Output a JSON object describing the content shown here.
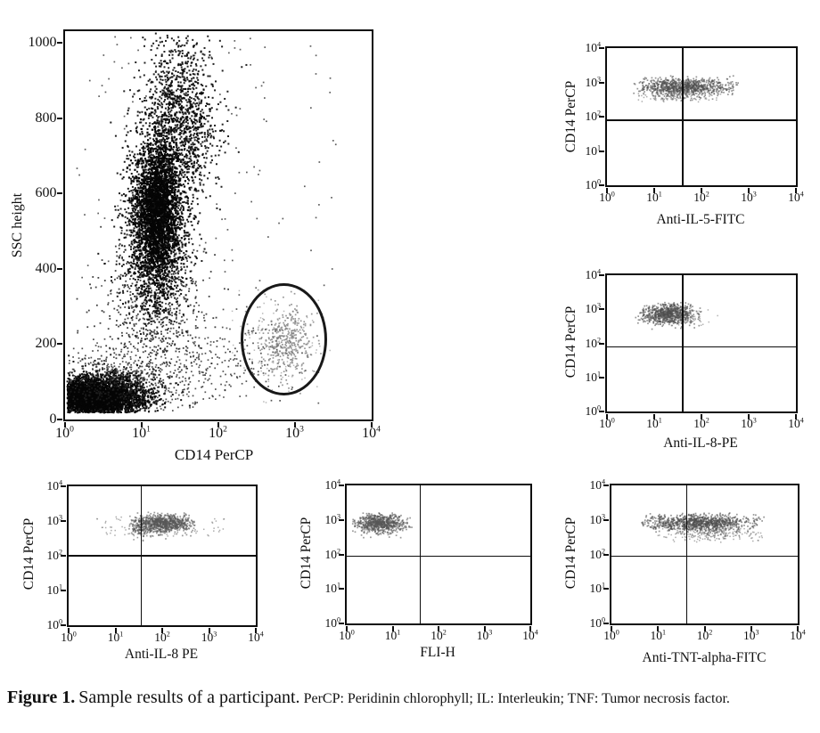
{
  "caption": {
    "label": "Figure 1.",
    "text": "Sample results of a participant.",
    "note": "PerCP: Peridinin chlorophyll; IL: Interleukin; TNF: Tumor necrosis factor."
  },
  "colors": {
    "ink": "#0d0d0d",
    "gate_population_gray": "#7d7d7d",
    "background": "#ffffff"
  },
  "chart_data": [
    {
      "id": "ssc-vs-cd14",
      "type": "scatter",
      "xlabel": "CD14 PerCP",
      "ylabel": "SSC height",
      "xscale": "log",
      "xrange": [
        0,
        4
      ],
      "yscale": "linear",
      "yrange": [
        0,
        1033
      ],
      "xticks": [
        {
          "v": 0,
          "label": "10^0"
        },
        {
          "v": 1,
          "label": "10^1"
        },
        {
          "v": 2,
          "label": "10^2"
        },
        {
          "v": 3,
          "label": "10^3"
        },
        {
          "v": 4,
          "label": "10^4"
        }
      ],
      "yticks": [
        {
          "v": 0,
          "label": "0"
        },
        {
          "v": 200,
          "label": "200"
        },
        {
          "v": 400,
          "label": "400"
        },
        {
          "v": 600,
          "label": "600"
        },
        {
          "v": 800,
          "label": "800"
        },
        {
          "v": 1000,
          "label": "1000"
        }
      ],
      "gate_ellipse": {
        "cx": 2.86,
        "cy": 212,
        "rx": 0.565,
        "ry": 150
      },
      "clusters": [
        {
          "n": 2600,
          "cx": 0.42,
          "cy": 60,
          "sx": 0.34,
          "sy": 30,
          "clipx": [
            0.03,
            2.1
          ],
          "clipy": [
            18,
            170
          ],
          "color": "#070707",
          "size": 2,
          "alpha": 0.95
        },
        {
          "n": 1200,
          "cx": 0.35,
          "cy": 55,
          "sx": 0.22,
          "sy": 20,
          "clipx": [
            0.03,
            1.6
          ],
          "clipy": [
            18,
            140
          ],
          "color": "#050505",
          "size": 2.2,
          "alpha": 1
        },
        {
          "n": 600,
          "cx": 0.75,
          "cy": 100,
          "sx": 0.5,
          "sy": 50,
          "clipx": [
            0.03,
            2.4
          ],
          "clipy": [
            20,
            280
          ],
          "color": "#222222",
          "size": 1.7,
          "alpha": 0.8
        },
        {
          "n": 2400,
          "cx": 1.18,
          "cy": 520,
          "sx": 0.2,
          "sy": 110,
          "clipx": [
            0.35,
            2.5
          ],
          "clipy": [
            210,
            900
          ],
          "color": "#0a0a0a",
          "size": 2,
          "alpha": 0.92
        },
        {
          "n": 1500,
          "cx": 1.22,
          "cy": 565,
          "sx": 0.13,
          "sy": 95,
          "clipx": [
            0.5,
            2.2
          ],
          "clipy": [
            260,
            860
          ],
          "color": "#050505",
          "size": 2.2,
          "alpha": 1
        },
        {
          "n": 1300,
          "cx": 1.5,
          "cy": 800,
          "sx": 0.24,
          "sy": 115,
          "clipx": [
            0.5,
            2.7
          ],
          "clipy": [
            430,
            1028
          ],
          "color": "#0a0a0a",
          "size": 2,
          "alpha": 0.9
        },
        {
          "n": 700,
          "cx": 1.15,
          "cy": 300,
          "sx": 0.35,
          "sy": 115,
          "clipx": [
            0.15,
            2.7
          ],
          "clipy": [
            70,
            540
          ],
          "color": "#111111",
          "size": 1.8,
          "alpha": 0.8
        },
        {
          "n": 200,
          "cx": 1.95,
          "cy": 165,
          "sx": 0.5,
          "sy": 60,
          "clipx": [
            0.8,
            3.2
          ],
          "clipy": [
            40,
            330
          ],
          "color": "#1a1a1a",
          "size": 1.7,
          "alpha": 0.75
        },
        {
          "n": 170,
          "dist": "uniform",
          "x": [
            0.15,
            3.55
          ],
          "y": [
            40,
            1020
          ],
          "clipx": [
            0,
            4
          ],
          "clipy": [
            0,
            1033
          ],
          "color": "#1a1a1a",
          "size": 1.7,
          "alpha": 0.7
        },
        {
          "n": 420,
          "cx": 2.87,
          "cy": 205,
          "sx": 0.18,
          "sy": 50,
          "clipx": [
            2.33,
            3.4
          ],
          "clipy": [
            62,
            355
          ],
          "color": "#7d7d7d",
          "size": 1.7,
          "alpha": 0.8
        },
        {
          "n": 90,
          "cx": 2.8,
          "cy": 200,
          "sx": 0.3,
          "sy": 78,
          "clipx": [
            2.1,
            3.5
          ],
          "clipy": [
            40,
            380
          ],
          "color": "#9b9b9b",
          "size": 1.5,
          "alpha": 0.7
        }
      ]
    },
    {
      "id": "cd14-vs-anti-il5-fitc",
      "type": "scatter",
      "xlabel": "Anti-IL-5-FITC",
      "ylabel": "CD14 PerCP",
      "xscale": "log",
      "xrange": [
        0,
        4
      ],
      "yscale": "log",
      "yrange": [
        0,
        4
      ],
      "xticks": [
        {
          "v": 0,
          "label": "10^0"
        },
        {
          "v": 1,
          "label": "10^1"
        },
        {
          "v": 2,
          "label": "10^2"
        },
        {
          "v": 3,
          "label": "10^3"
        },
        {
          "v": 4,
          "label": "10^4"
        }
      ],
      "yticks": [
        {
          "v": 0,
          "label": "10^0"
        },
        {
          "v": 1,
          "label": "10^1"
        },
        {
          "v": 2,
          "label": "10^2"
        },
        {
          "v": 3,
          "label": "10^3"
        },
        {
          "v": 4,
          "label": "10^4"
        }
      ],
      "quadrant": {
        "vx": 1.6,
        "hy": 1.9
      },
      "clusters": [
        {
          "n": 900,
          "cx": 1.62,
          "cy": 2.87,
          "sx": 0.48,
          "sy": 0.13,
          "clipx": [
            0.55,
            2.78
          ],
          "clipy": [
            2.45,
            3.22
          ],
          "color": "#4f4f4f",
          "size": 1.7,
          "alpha": 0.6
        },
        {
          "n": 140,
          "cx": 1.5,
          "cy": 2.6,
          "sx": 0.4,
          "sy": 0.1,
          "clipx": [
            0.6,
            2.6
          ],
          "clipy": [
            2.4,
            2.75
          ],
          "color": "#6a6a6a",
          "size": 1.5,
          "alpha": 0.55
        }
      ]
    },
    {
      "id": "cd14-vs-anti-il8-pe",
      "type": "scatter",
      "xlabel": "Anti-IL-8-PE",
      "ylabel": "CD14 PerCP",
      "xscale": "log",
      "xrange": [
        0,
        4
      ],
      "yscale": "log",
      "yrange": [
        0,
        4
      ],
      "xticks": [
        {
          "v": 0,
          "label": "10^0"
        },
        {
          "v": 1,
          "label": "10^1"
        },
        {
          "v": 2,
          "label": "10^2"
        },
        {
          "v": 3,
          "label": "10^3"
        },
        {
          "v": 4,
          "label": "10^4"
        }
      ],
      "yticks": [
        {
          "v": 0,
          "label": "10^0"
        },
        {
          "v": 1,
          "label": "10^1"
        },
        {
          "v": 2,
          "label": "10^2"
        },
        {
          "v": 3,
          "label": "10^3"
        },
        {
          "v": 4,
          "label": "10^4"
        }
      ],
      "quadrant": {
        "vx": 1.6,
        "hy": 1.9
      },
      "clusters": [
        {
          "n": 800,
          "cx": 1.28,
          "cy": 2.86,
          "sx": 0.28,
          "sy": 0.15,
          "clipx": [
            0.6,
            2.2
          ],
          "clipy": [
            2.38,
            3.2
          ],
          "color": "#4f4f4f",
          "size": 1.7,
          "alpha": 0.6
        },
        {
          "n": 60,
          "cx": 1.7,
          "cy": 2.8,
          "sx": 0.3,
          "sy": 0.15,
          "clipx": [
            1.2,
            2.35
          ],
          "clipy": [
            2.5,
            3.1
          ],
          "color": "#6a6a6a",
          "size": 1.5,
          "alpha": 0.5
        }
      ]
    },
    {
      "id": "cd14-vs-anti-il8-pe-2",
      "type": "scatter",
      "xlabel": "Anti-IL-8 PE",
      "ylabel": "CD14 PerCP",
      "xscale": "log",
      "xrange": [
        0,
        4
      ],
      "yscale": "log",
      "yrange": [
        0,
        4
      ],
      "xticks": [
        {
          "v": 0,
          "label": "10^0"
        },
        {
          "v": 1,
          "label": "10^1"
        },
        {
          "v": 2,
          "label": "10^2"
        },
        {
          "v": 3,
          "label": "10^3"
        },
        {
          "v": 4,
          "label": "10^4"
        }
      ],
      "yticks": [
        {
          "v": 0,
          "label": "10^0"
        },
        {
          "v": 1,
          "label": "10^1"
        },
        {
          "v": 2,
          "label": "10^2"
        },
        {
          "v": 3,
          "label": "10^3"
        },
        {
          "v": 4,
          "label": "10^4"
        }
      ],
      "quadrant": {
        "vx": 1.55,
        "hy": 2.0
      },
      "clusters": [
        {
          "n": 850,
          "cx": 2.05,
          "cy": 2.93,
          "sx": 0.3,
          "sy": 0.13,
          "clipx": [
            1.25,
            2.7
          ],
          "clipy": [
            2.42,
            3.25
          ],
          "color": "#565656",
          "size": 1.7,
          "alpha": 0.6
        },
        {
          "n": 160,
          "cx": 1.56,
          "cy": 2.82,
          "sx": 0.13,
          "sy": 0.17,
          "clipx": [
            1.3,
            1.85
          ],
          "clipy": [
            2.4,
            3.15
          ],
          "color": "#565656",
          "size": 1.6,
          "alpha": 0.6
        },
        {
          "n": 90,
          "dist": "uniform",
          "x": [
            0.55,
            3.35
          ],
          "y": [
            2.55,
            3.12
          ],
          "clipx": [
            0,
            4
          ],
          "clipy": [
            0,
            4
          ],
          "color": "#6a6a6a",
          "size": 1.5,
          "alpha": 0.55
        }
      ]
    },
    {
      "id": "cd14-vs-fli-h",
      "type": "scatter",
      "xlabel": "FLI-H",
      "ylabel": "CD14 PerCP",
      "xscale": "log",
      "xrange": [
        0,
        4
      ],
      "yscale": "log",
      "yrange": [
        0,
        4
      ],
      "xticks": [
        {
          "v": 0,
          "label": "10^0"
        },
        {
          "v": 1,
          "label": "10^1"
        },
        {
          "v": 2,
          "label": "10^2"
        },
        {
          "v": 3,
          "label": "10^3"
        },
        {
          "v": 4,
          "label": "10^4"
        }
      ],
      "yticks": [
        {
          "v": 0,
          "label": "10^0"
        },
        {
          "v": 1,
          "label": "10^1"
        },
        {
          "v": 2,
          "label": "10^2"
        },
        {
          "v": 3,
          "label": "10^3"
        },
        {
          "v": 4,
          "label": "10^4"
        }
      ],
      "quadrant": {
        "vx": 1.6,
        "hy": 1.95
      },
      "clusters": [
        {
          "n": 750,
          "cx": 0.72,
          "cy": 2.9,
          "sx": 0.27,
          "sy": 0.14,
          "clipx": [
            0.13,
            1.42
          ],
          "clipy": [
            2.45,
            3.2
          ],
          "color": "#565656",
          "size": 1.7,
          "alpha": 0.6
        }
      ]
    },
    {
      "id": "cd14-vs-anti-tnt-alpha-fitc",
      "type": "scatter",
      "xlabel": "Anti-TNT-alpha-FITC",
      "ylabel": "CD14 PerCP",
      "xscale": "log",
      "xrange": [
        0,
        4
      ],
      "yscale": "log",
      "yrange": [
        0,
        4
      ],
      "xticks": [
        {
          "v": 0,
          "label": "10^0"
        },
        {
          "v": 1,
          "label": "10^1"
        },
        {
          "v": 2,
          "label": "10^2"
        },
        {
          "v": 3,
          "label": "10^3"
        },
        {
          "v": 4,
          "label": "10^4"
        }
      ],
      "yticks": [
        {
          "v": 0,
          "label": "10^0"
        },
        {
          "v": 1,
          "label": "10^1"
        },
        {
          "v": 2,
          "label": "10^2"
        },
        {
          "v": 3,
          "label": "10^3"
        },
        {
          "v": 4,
          "label": "10^4"
        }
      ],
      "quadrant": {
        "vx": 1.62,
        "hy": 1.95
      },
      "clusters": [
        {
          "n": 1000,
          "cx": 1.9,
          "cy": 2.92,
          "sx": 0.58,
          "sy": 0.12,
          "clipx": [
            0.62,
            3.28
          ],
          "clipy": [
            2.42,
            3.2
          ],
          "color": "#4f4f4f",
          "size": 1.7,
          "alpha": 0.6
        },
        {
          "n": 230,
          "cx": 2.1,
          "cy": 2.62,
          "sx": 0.55,
          "sy": 0.12,
          "clipx": [
            0.8,
            3.25
          ],
          "clipy": [
            2.35,
            2.8
          ],
          "color": "#6a6a6a",
          "size": 1.5,
          "alpha": 0.55
        }
      ]
    }
  ]
}
